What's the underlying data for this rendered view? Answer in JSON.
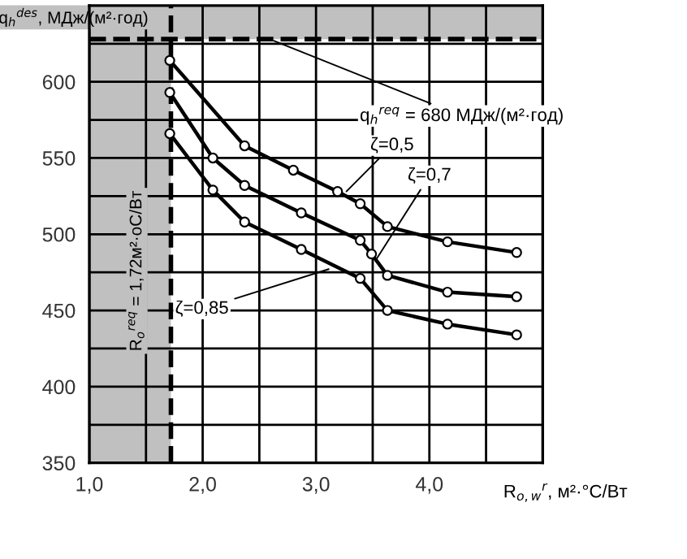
{
  "chart_data": {
    "type": "line",
    "xlabel": "R$_{o,w}$$^{r}$, м²·°С/Вт",
    "ylabel": "q$_{h}$$^{des}$, МДж/(м²·год)",
    "xlim": [
      1.0,
      5.0
    ],
    "ylim": [
      350,
      650
    ],
    "xticks": [
      {
        "value": 1.0,
        "label": "1,0"
      },
      {
        "value": 1.5,
        "label": null
      },
      {
        "value": 2.0,
        "label": "2,0"
      },
      {
        "value": 2.5,
        "label": null
      },
      {
        "value": 3.0,
        "label": "3,0"
      },
      {
        "value": 3.5,
        "label": null
      },
      {
        "value": 4.0,
        "label": "4,0"
      },
      {
        "value": 4.5,
        "label": null
      },
      {
        "value": 5.0,
        "label": null
      }
    ],
    "yticks": [
      350,
      {
        "value": 375,
        "label": null
      },
      400,
      {
        "value": 425,
        "label": null
      },
      450,
      {
        "value": 475,
        "label": null
      },
      500,
      {
        "value": 525,
        "label": null
      },
      550,
      {
        "value": 575,
        "label": null
      },
      600,
      {
        "value": 625,
        "label": null
      }
    ],
    "grid": true,
    "legend": false,
    "marker": "circle",
    "line_style": "solid",
    "series": [
      {
        "color": "#000000",
        "x": [
          1.71,
          2.37,
          2.8,
          3.19,
          3.39,
          3.63,
          4.16,
          4.77
        ],
        "values": [
          614,
          558,
          542,
          528,
          520,
          505,
          495,
          488
        ]
      },
      {
        "color": "#000000",
        "x": [
          1.71,
          2.09,
          2.37,
          2.87,
          3.39,
          3.49,
          3.63,
          4.16,
          4.77
        ],
        "values": [
          593,
          550,
          532,
          514,
          496,
          487,
          473,
          462,
          459
        ]
      },
      {
        "color": "#000000",
        "x": [
          1.71,
          2.09,
          2.37,
          2.87,
          3.39,
          3.63,
          4.16,
          4.77
        ],
        "values": [
          566,
          529,
          508,
          490,
          471,
          450,
          441,
          434
        ]
      }
    ],
    "bands": [
      {
        "axis": "x",
        "from": 1.0,
        "to": 1.72,
        "color": "#c0c0c0"
      },
      {
        "axis": "y",
        "from": 628,
        "to": 650,
        "color": "#c0c0c0"
      }
    ],
    "ref_lines": [
      {
        "axis": "x",
        "value": 1.72,
        "label": "R$_{o}$$^{req}$ = 1,72м²·оС/Вт",
        "line_style": "dashed",
        "color": "#000000"
      },
      {
        "axis": "y",
        "value": 628,
        "line_style": "dashed",
        "color": "#000000"
      }
    ],
    "annotations": [
      {
        "text": "q$_{h}$$^{req}$ = 680 МДж/(м²·год)",
        "x": 2.59,
        "y": 628
      },
      {
        "text": "ζ=0,5",
        "x": 3.24,
        "y": 526
      },
      {
        "text": "ζ=0,7",
        "x": 3.51,
        "y": 481
      },
      {
        "text": "ζ=0,85",
        "x": 3.15,
        "y": 478
      }
    ]
  }
}
